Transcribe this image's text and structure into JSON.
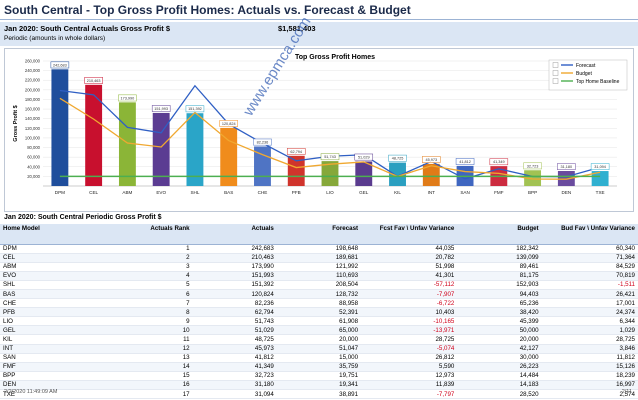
{
  "report": {
    "title": "South Central - Top Gross Profit Homes: Actuals vs. Forecast & Budget",
    "kpi_label": "Jan 2020: South Central Actuals Gross Profit $",
    "kpi_value": "$1,581,403",
    "kpi_sub": "Periodic (amounts in whole dollars)",
    "section_title": "Jan 2020: South Central Periodic Gross Profit $",
    "footer_left": "2/2/2020 11:49:09 AM",
    "footer_right": "2/11",
    "watermark": "www.epmca.com"
  },
  "table": {
    "headers": [
      "Home Model",
      "Actuals Rank",
      "Actuals",
      "Forecast",
      "Fcst Fav \\ Unfav Variance",
      "Budget",
      "Bud Fav \\ Unfav Variance"
    ],
    "rows": [
      [
        "DPM",
        "1",
        "242,683",
        "198,648",
        "44,035",
        "182,342",
        "60,340"
      ],
      [
        "CEL",
        "2",
        "210,463",
        "189,681",
        "20,782",
        "139,099",
        "71,364"
      ],
      [
        "ABM",
        "3",
        "173,990",
        "121,992",
        "51,998",
        "89,461",
        "84,529"
      ],
      [
        "EVO",
        "4",
        "151,993",
        "110,693",
        "41,301",
        "81,175",
        "70,819"
      ],
      [
        "SHL",
        "5",
        "151,392",
        "208,504",
        "-57,112",
        "152,903",
        "-1,511"
      ],
      [
        "BAS",
        "6",
        "120,824",
        "128,732",
        "-7,907",
        "94,403",
        "26,421"
      ],
      [
        "CHE",
        "7",
        "82,236",
        "88,958",
        "-6,722",
        "65,236",
        "17,001"
      ],
      [
        "PFB",
        "8",
        "62,794",
        "52,391",
        "10,403",
        "38,420",
        "24,374"
      ],
      [
        "LIO",
        "9",
        "51,743",
        "61,908",
        "-10,165",
        "45,399",
        "6,344"
      ],
      [
        "GEL",
        "10",
        "51,029",
        "65,000",
        "-13,971",
        "50,000",
        "1,029"
      ],
      [
        "KIL",
        "11",
        "48,725",
        "20,000",
        "28,725",
        "20,000",
        "28,725"
      ],
      [
        "INT",
        "12",
        "45,973",
        "51,047",
        "-5,074",
        "42,127",
        "3,846"
      ],
      [
        "SAN",
        "13",
        "41,812",
        "15,000",
        "26,812",
        "30,000",
        "11,812"
      ],
      [
        "FMF",
        "14",
        "41,349",
        "35,759",
        "5,590",
        "26,223",
        "15,126"
      ],
      [
        "BPP",
        "15",
        "32,723",
        "19,751",
        "12,973",
        "14,484",
        "18,239"
      ],
      [
        "DEN",
        "16",
        "31,180",
        "19,341",
        "11,839",
        "14,183",
        "16,997"
      ],
      [
        "TXE",
        "17",
        "31,094",
        "38,891",
        "-7,797",
        "28,520",
        "2,574"
      ]
    ]
  },
  "chart_data": {
    "type": "bar",
    "title": "Top Gross Profit Homes",
    "ylabel": "Gross Profit $",
    "xlabel": "",
    "ylim": [
      0,
      260000
    ],
    "yticks": [
      "20,000",
      "40,000",
      "60,000",
      "80,000",
      "100,000",
      "120,000",
      "140,000",
      "160,000",
      "180,000",
      "200,000",
      "220,000",
      "240,000",
      "260,000"
    ],
    "categories": [
      "DPM",
      "CEL",
      "ABM",
      "EVO",
      "SHL",
      "BAS",
      "CHE",
      "PFB",
      "LIO",
      "GEL",
      "KIL",
      "INT",
      "SAN",
      "FMF",
      "BPP",
      "DEN",
      "TXE"
    ],
    "bar_labels": [
      "242,683",
      "210,463",
      "173,990",
      "151,993",
      "151,392",
      "120,824",
      "82,236",
      "62,794",
      "51,743",
      "51,029",
      "48,725",
      "45,973",
      "41,812",
      "41,349",
      "32,723",
      "31,180",
      "31,094"
    ],
    "values": [
      242683,
      210463,
      173990,
      151993,
      151392,
      120824,
      82236,
      62794,
      51743,
      51029,
      48725,
      45973,
      41812,
      41349,
      32723,
      31180,
      31094
    ],
    "bar_colors": [
      "#1f4e9c",
      "#c8102e",
      "#8bb537",
      "#5b3c92",
      "#2aa5c8",
      "#f08c1c",
      "#4f74c4",
      "#d0342c",
      "#86a83a",
      "#5a3b8e",
      "#2b9fc0",
      "#e07b18",
      "#3f66c0",
      "#cc2b3f",
      "#a2c253",
      "#6a4b9e",
      "#30b0d0"
    ],
    "series": [
      {
        "name": "Forecast",
        "color": "#2f5fc4",
        "values": [
          198648,
          189681,
          121992,
          110693,
          208504,
          128732,
          88958,
          52391,
          61908,
          65000,
          20000,
          51047,
          15000,
          35759,
          19751,
          19341,
          38891
        ]
      },
      {
        "name": "Budget",
        "color": "#f0a830",
        "values": [
          182342,
          139099,
          89461,
          81175,
          152903,
          94403,
          65236,
          38420,
          45399,
          50000,
          20000,
          42127,
          30000,
          26223,
          14484,
          14183,
          28520
        ]
      },
      {
        "name": "Top Home Baseline",
        "color": "#4caf50",
        "values": [
          20000,
          20000,
          20000,
          20000,
          20000,
          20000,
          20000,
          20000,
          20000,
          20000,
          20000,
          20000,
          20000,
          20000,
          20000,
          20000,
          20000
        ]
      }
    ],
    "legend": "top-right",
    "grid": true
  }
}
